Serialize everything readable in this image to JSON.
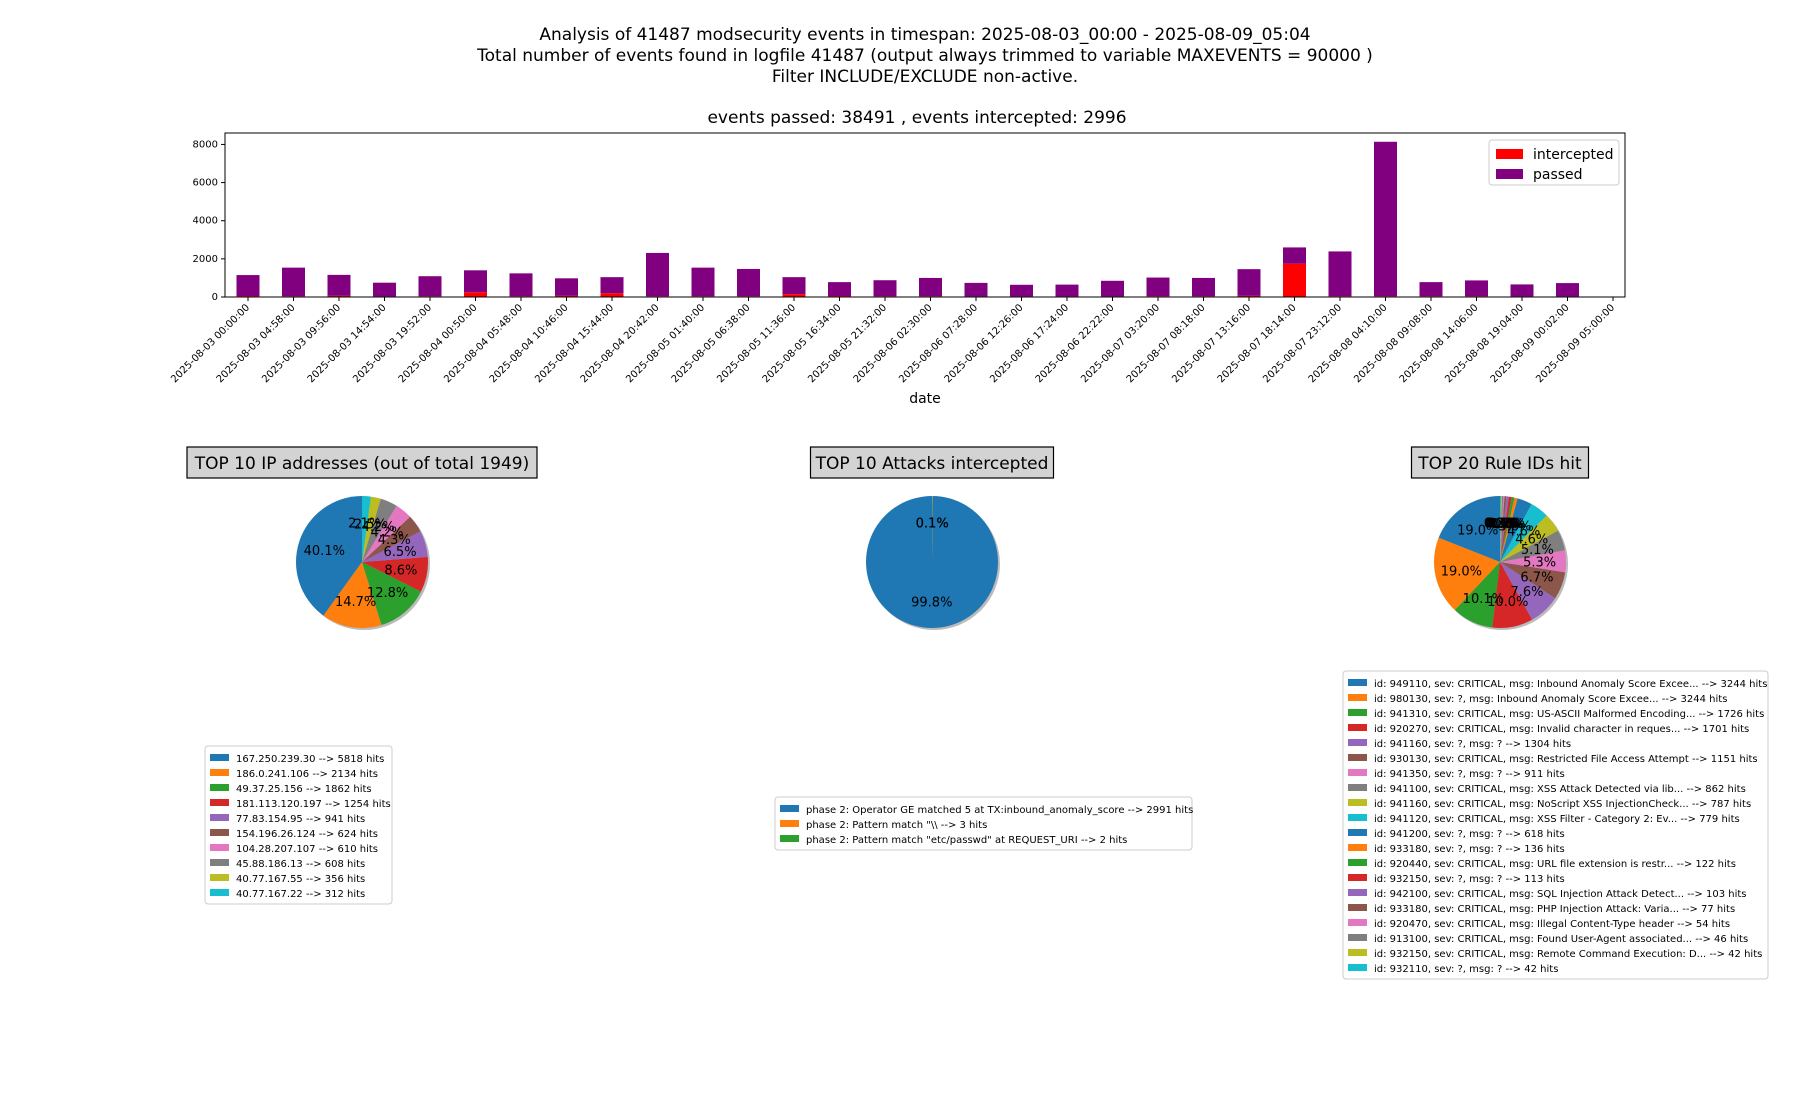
{
  "header": {
    "line1": "Analysis of 41487 modsecurity events in timespan: 2025-08-03_00:00 - 2025-08-09_05:04",
    "line2": "Total number of events found in logfile 41487 (output always trimmed to variable MAXEVENTS = 90000 )",
    "line3": "Filter INCLUDE/EXCLUDE non-active."
  },
  "colors": {
    "intercepted": "#ff0000",
    "passed": "#800080",
    "tab10": [
      "#1f77b4",
      "#ff7f0e",
      "#2ca02c",
      "#d62728",
      "#9467bd",
      "#8c564b",
      "#e377c2",
      "#7f7f7f",
      "#bcbd22",
      "#17becf"
    ]
  },
  "chart_data": [
    {
      "type": "bar",
      "stacked": true,
      "title": "events passed: 38491 , events intercepted: 2996",
      "xlabel": "date",
      "ylabel": "",
      "ylim": [
        0,
        8600
      ],
      "yticks": [
        0,
        2000,
        4000,
        6000,
        8000
      ],
      "legend_position": "top-right",
      "categories": [
        "2025-08-03 00:00:00",
        "2025-08-03 04:58:00",
        "2025-08-03 09:56:00",
        "2025-08-03 14:54:00",
        "2025-08-03 19:52:00",
        "2025-08-04 00:50:00",
        "2025-08-04 05:48:00",
        "2025-08-04 10:46:00",
        "2025-08-04 15:44:00",
        "2025-08-04 20:42:00",
        "2025-08-05 01:40:00",
        "2025-08-05 06:38:00",
        "2025-08-05 11:36:00",
        "2025-08-05 16:34:00",
        "2025-08-05 21:32:00",
        "2025-08-06 02:30:00",
        "2025-08-06 07:28:00",
        "2025-08-06 12:26:00",
        "2025-08-06 17:24:00",
        "2025-08-06 22:22:00",
        "2025-08-07 03:20:00",
        "2025-08-07 08:18:00",
        "2025-08-07 13:16:00",
        "2025-08-07 18:14:00",
        "2025-08-07 23:12:00",
        "2025-08-08 04:10:00",
        "2025-08-08 09:08:00",
        "2025-08-08 14:06:00",
        "2025-08-08 19:04:00",
        "2025-08-09 00:02:00",
        "2025-08-09 05:00:00"
      ],
      "series": [
        {
          "name": "intercepted",
          "values": [
            50,
            40,
            60,
            30,
            40,
            250,
            40,
            60,
            200,
            40,
            40,
            40,
            150,
            50,
            40,
            40,
            30,
            30,
            30,
            30,
            40,
            40,
            60,
            1750,
            40,
            40,
            40,
            40,
            30,
            30,
            0
          ]
        },
        {
          "name": "passed",
          "values": [
            1100,
            1500,
            1100,
            720,
            1050,
            1150,
            1200,
            920,
            840,
            2270,
            1500,
            1430,
            890,
            730,
            840,
            960,
            710,
            610,
            620,
            820,
            980,
            960,
            1400,
            850,
            2350,
            8100,
            740,
            830,
            630,
            700,
            0
          ]
        }
      ]
    },
    {
      "type": "pie",
      "title": "TOP 10 IP addresses (out of total 1949)",
      "labels": [
        "167.250.239.30 --> 5818 hits",
        "186.0.241.106 --> 2134 hits",
        "49.37.25.156 --> 1862 hits",
        "181.113.120.197 --> 1254 hits",
        "77.83.154.95 --> 941 hits",
        "154.196.26.124 --> 624 hits",
        "104.28.207.107 --> 610 hits",
        "45.88.186.13 --> 608 hits",
        "40.77.167.55 --> 356 hits",
        "40.77.167.22 --> 312 hits"
      ],
      "values": [
        5818,
        2134,
        1862,
        1254,
        941,
        624,
        610,
        608,
        356,
        312
      ],
      "pct_labels": [
        "40.1%",
        "14.7%",
        "12.8%",
        "8.6%",
        "6.5%",
        "4.3%",
        "4.2%",
        "4.2%",
        "2.5%",
        "2.1%"
      ]
    },
    {
      "type": "pie",
      "title": "TOP 10 Attacks intercepted",
      "labels": [
        "phase 2: Operator GE matched 5 at TX:inbound_anomaly_score --> 2991 hits",
        "phase 2: Pattern match \"\\\\ --> 3 hits",
        "phase 2: Pattern match \"etc/passwd\" at REQUEST_URI --> 2 hits"
      ],
      "values": [
        2991,
        3,
        2
      ],
      "pct_labels": [
        "99.8%",
        "0.1%",
        "0.1%"
      ]
    },
    {
      "type": "pie",
      "title": "TOP 20 Rule IDs hit",
      "labels": [
        "id: 949110, sev: CRITICAL, msg: Inbound Anomaly Score Excee... --> 3244 hits",
        "id: 980130, sev: ?, msg: Inbound Anomaly Score Excee... --> 3244 hits",
        "id: 941310, sev: CRITICAL, msg: US-ASCII Malformed Encoding... --> 1726 hits",
        "id: 920270, sev: CRITICAL, msg: Invalid character in reques... --> 1701 hits",
        "id: 941160, sev: ?, msg: ? --> 1304 hits",
        "id: 930130, sev: CRITICAL, msg: Restricted File Access Attempt --> 1151 hits",
        "id: 941350, sev: ?, msg: ? --> 911 hits",
        "id: 941100, sev: CRITICAL, msg: XSS Attack Detected via lib... --> 862 hits",
        "id: 941160, sev: CRITICAL, msg: NoScript XSS InjectionCheck... --> 787 hits",
        "id: 941120, sev: CRITICAL, msg: XSS Filter - Category 2: Ev... --> 779 hits",
        "id: 941200, sev: ?, msg: ? --> 618 hits",
        "id: 933180, sev: ?, msg: ? --> 136 hits",
        "id: 920440, sev: CRITICAL, msg: URL file extension is restr... --> 122 hits",
        "id: 932150, sev: ?, msg: ? --> 113 hits",
        "id: 942100, sev: CRITICAL, msg: SQL Injection Attack Detect... --> 103 hits",
        "id: 933180, sev: CRITICAL, msg: PHP Injection Attack: Varia... --> 77 hits",
        "id: 920470, sev: CRITICAL, msg: Illegal Content-Type header --> 54 hits",
        "id: 913100, sev: CRITICAL, msg: Found User-Agent associated... --> 46 hits",
        "id: 932150, sev: CRITICAL, msg: Remote Command Execution: D... --> 42 hits",
        "id: 932110, sev: ?, msg: ? --> 42 hits"
      ],
      "values": [
        3244,
        3244,
        1726,
        1701,
        1304,
        1151,
        911,
        862,
        787,
        779,
        618,
        136,
        122,
        113,
        103,
        77,
        54,
        46,
        42,
        42
      ],
      "pct_labels": [
        "19.0%",
        "19.0%",
        "10.1%",
        "10.0%",
        "7.6%",
        "6.7%",
        "5.3%",
        "5.1%",
        "4.6%",
        "4.6%",
        "3.6%",
        "0.8%",
        "0.7%",
        "0.7%",
        "0.6%",
        "0.5%",
        "0.3%",
        "0.3%",
        "0.2%",
        "0.2%"
      ]
    }
  ]
}
